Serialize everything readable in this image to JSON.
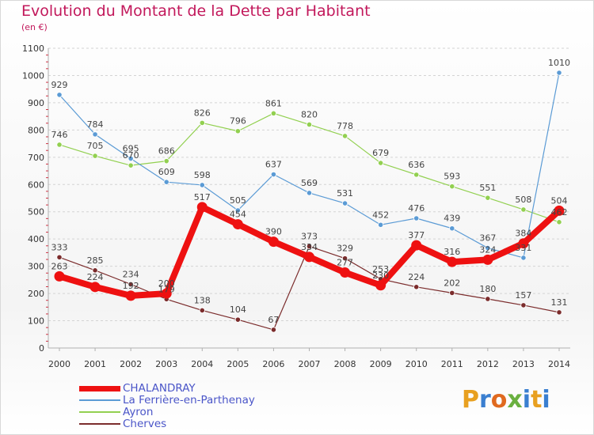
{
  "header": {
    "title": "Evolution du Montant de la Dette par Habitant",
    "subtitle": "(en €)"
  },
  "logo": {
    "text": "Proxiti",
    "letters": [
      "P",
      "r",
      "o",
      "x",
      "i",
      "t",
      "i"
    ],
    "colors": [
      "#e8a020",
      "#3a7fd0",
      "#e06a20",
      "#6ab040",
      "#3a7fd0",
      "#e8a020",
      "#3a7fd0"
    ]
  },
  "chart_data": {
    "type": "line",
    "title": "Evolution du Montant de la Dette par Habitant",
    "ylabel": "(en €)",
    "xlabel": "",
    "ylim": [
      0,
      1100
    ],
    "yticks": [
      0,
      100,
      200,
      300,
      400,
      500,
      600,
      700,
      800,
      900,
      1000,
      1100
    ],
    "grid": true,
    "categories": [
      "2000",
      "2001",
      "2002",
      "2003",
      "2004",
      "2005",
      "2006",
      "2007",
      "2008",
      "2009",
      "2010",
      "2011",
      "2012",
      "2013",
      "2014"
    ],
    "series": [
      {
        "name": "CHALANDRAY",
        "color": "#ee1111",
        "values": [
          263,
          224,
          192,
          200,
          517,
          454,
          390,
          334,
          277,
          230,
          377,
          316,
          324,
          384,
          504
        ],
        "labels": [
          "263",
          "224",
          "192",
          "200",
          "517",
          "454",
          "390",
          "334",
          "277",
          "230",
          "377",
          "316",
          "324",
          "384",
          "504"
        ]
      },
      {
        "name": "La Ferrière-en-Parthenay",
        "color": "#5b9bd5",
        "values": [
          929,
          784,
          695,
          609,
          598,
          505,
          637,
          569,
          531,
          452,
          476,
          439,
          367,
          331,
          1010
        ],
        "labels": [
          "929",
          "784",
          "695",
          "609",
          "598",
          "505",
          "637",
          "569",
          "531",
          "452",
          "476",
          "439",
          "367",
          "331",
          "1010"
        ]
      },
      {
        "name": "Ayron",
        "color": "#92d050",
        "values": [
          746,
          705,
          670,
          686,
          826,
          796,
          861,
          820,
          778,
          679,
          636,
          593,
          551,
          508,
          462
        ],
        "labels": [
          "746",
          "705",
          "670",
          "686",
          "826",
          "796",
          "861",
          "820",
          "778",
          "679",
          "636",
          "593",
          "551",
          "508",
          "462"
        ]
      },
      {
        "name": "Cherves",
        "color": "#7b2c2c",
        "values": [
          333,
          285,
          234,
          179,
          138,
          104,
          67,
          373,
          329,
          253,
          224,
          202,
          180,
          157,
          131
        ],
        "labels": [
          "333",
          "285",
          "234",
          "179",
          "138",
          "104",
          "67",
          "373",
          "329",
          "253",
          "224",
          "202",
          "180",
          "157",
          "131"
        ]
      }
    ]
  }
}
